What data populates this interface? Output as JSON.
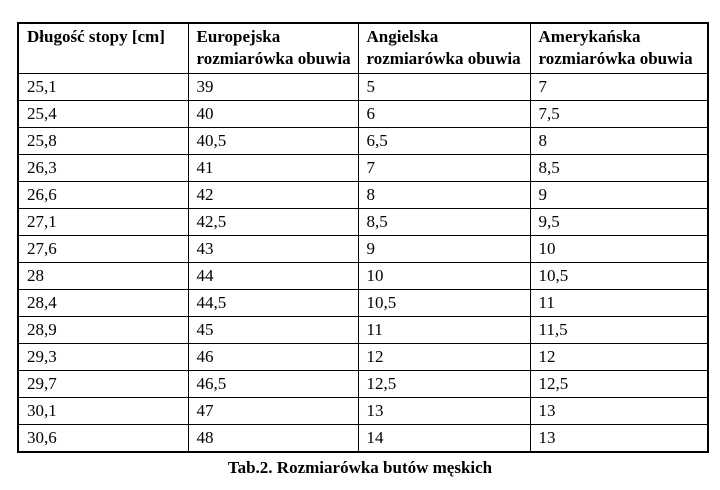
{
  "table": {
    "headers": [
      "Długość stopy [cm]",
      "Europejska rozmiarówka obuwia",
      "Angielska rozmiarówka obuwia",
      "Amerykańska rozmiarówka obuwia"
    ],
    "rows": [
      [
        "25,1",
        "39",
        "5",
        "7"
      ],
      [
        "25,4",
        "40",
        "6",
        "7,5"
      ],
      [
        "25,8",
        "40,5",
        "6,5",
        "8"
      ],
      [
        "26,3",
        "41",
        "7",
        "8,5"
      ],
      [
        "26,6",
        "42",
        "8",
        "9"
      ],
      [
        "27,1",
        "42,5",
        "8,5",
        "9,5"
      ],
      [
        "27,6",
        "43",
        "9",
        "10"
      ],
      [
        "28",
        "44",
        "10",
        "10,5"
      ],
      [
        "28,4",
        "44,5",
        "10,5",
        "11"
      ],
      [
        "28,9",
        "45",
        "11",
        "11,5"
      ],
      [
        "29,3",
        "46",
        "12",
        "12"
      ],
      [
        "29,7",
        "46,5",
        "12,5",
        "12,5"
      ],
      [
        "30,1",
        "47",
        "13",
        "13"
      ],
      [
        "30,6",
        "48",
        "14",
        "13"
      ]
    ],
    "caption": "Tab.2. Rozmiarówka butów męskich"
  },
  "colors": {
    "background": "#ffffff",
    "border": "#000000",
    "text": "#000000"
  }
}
